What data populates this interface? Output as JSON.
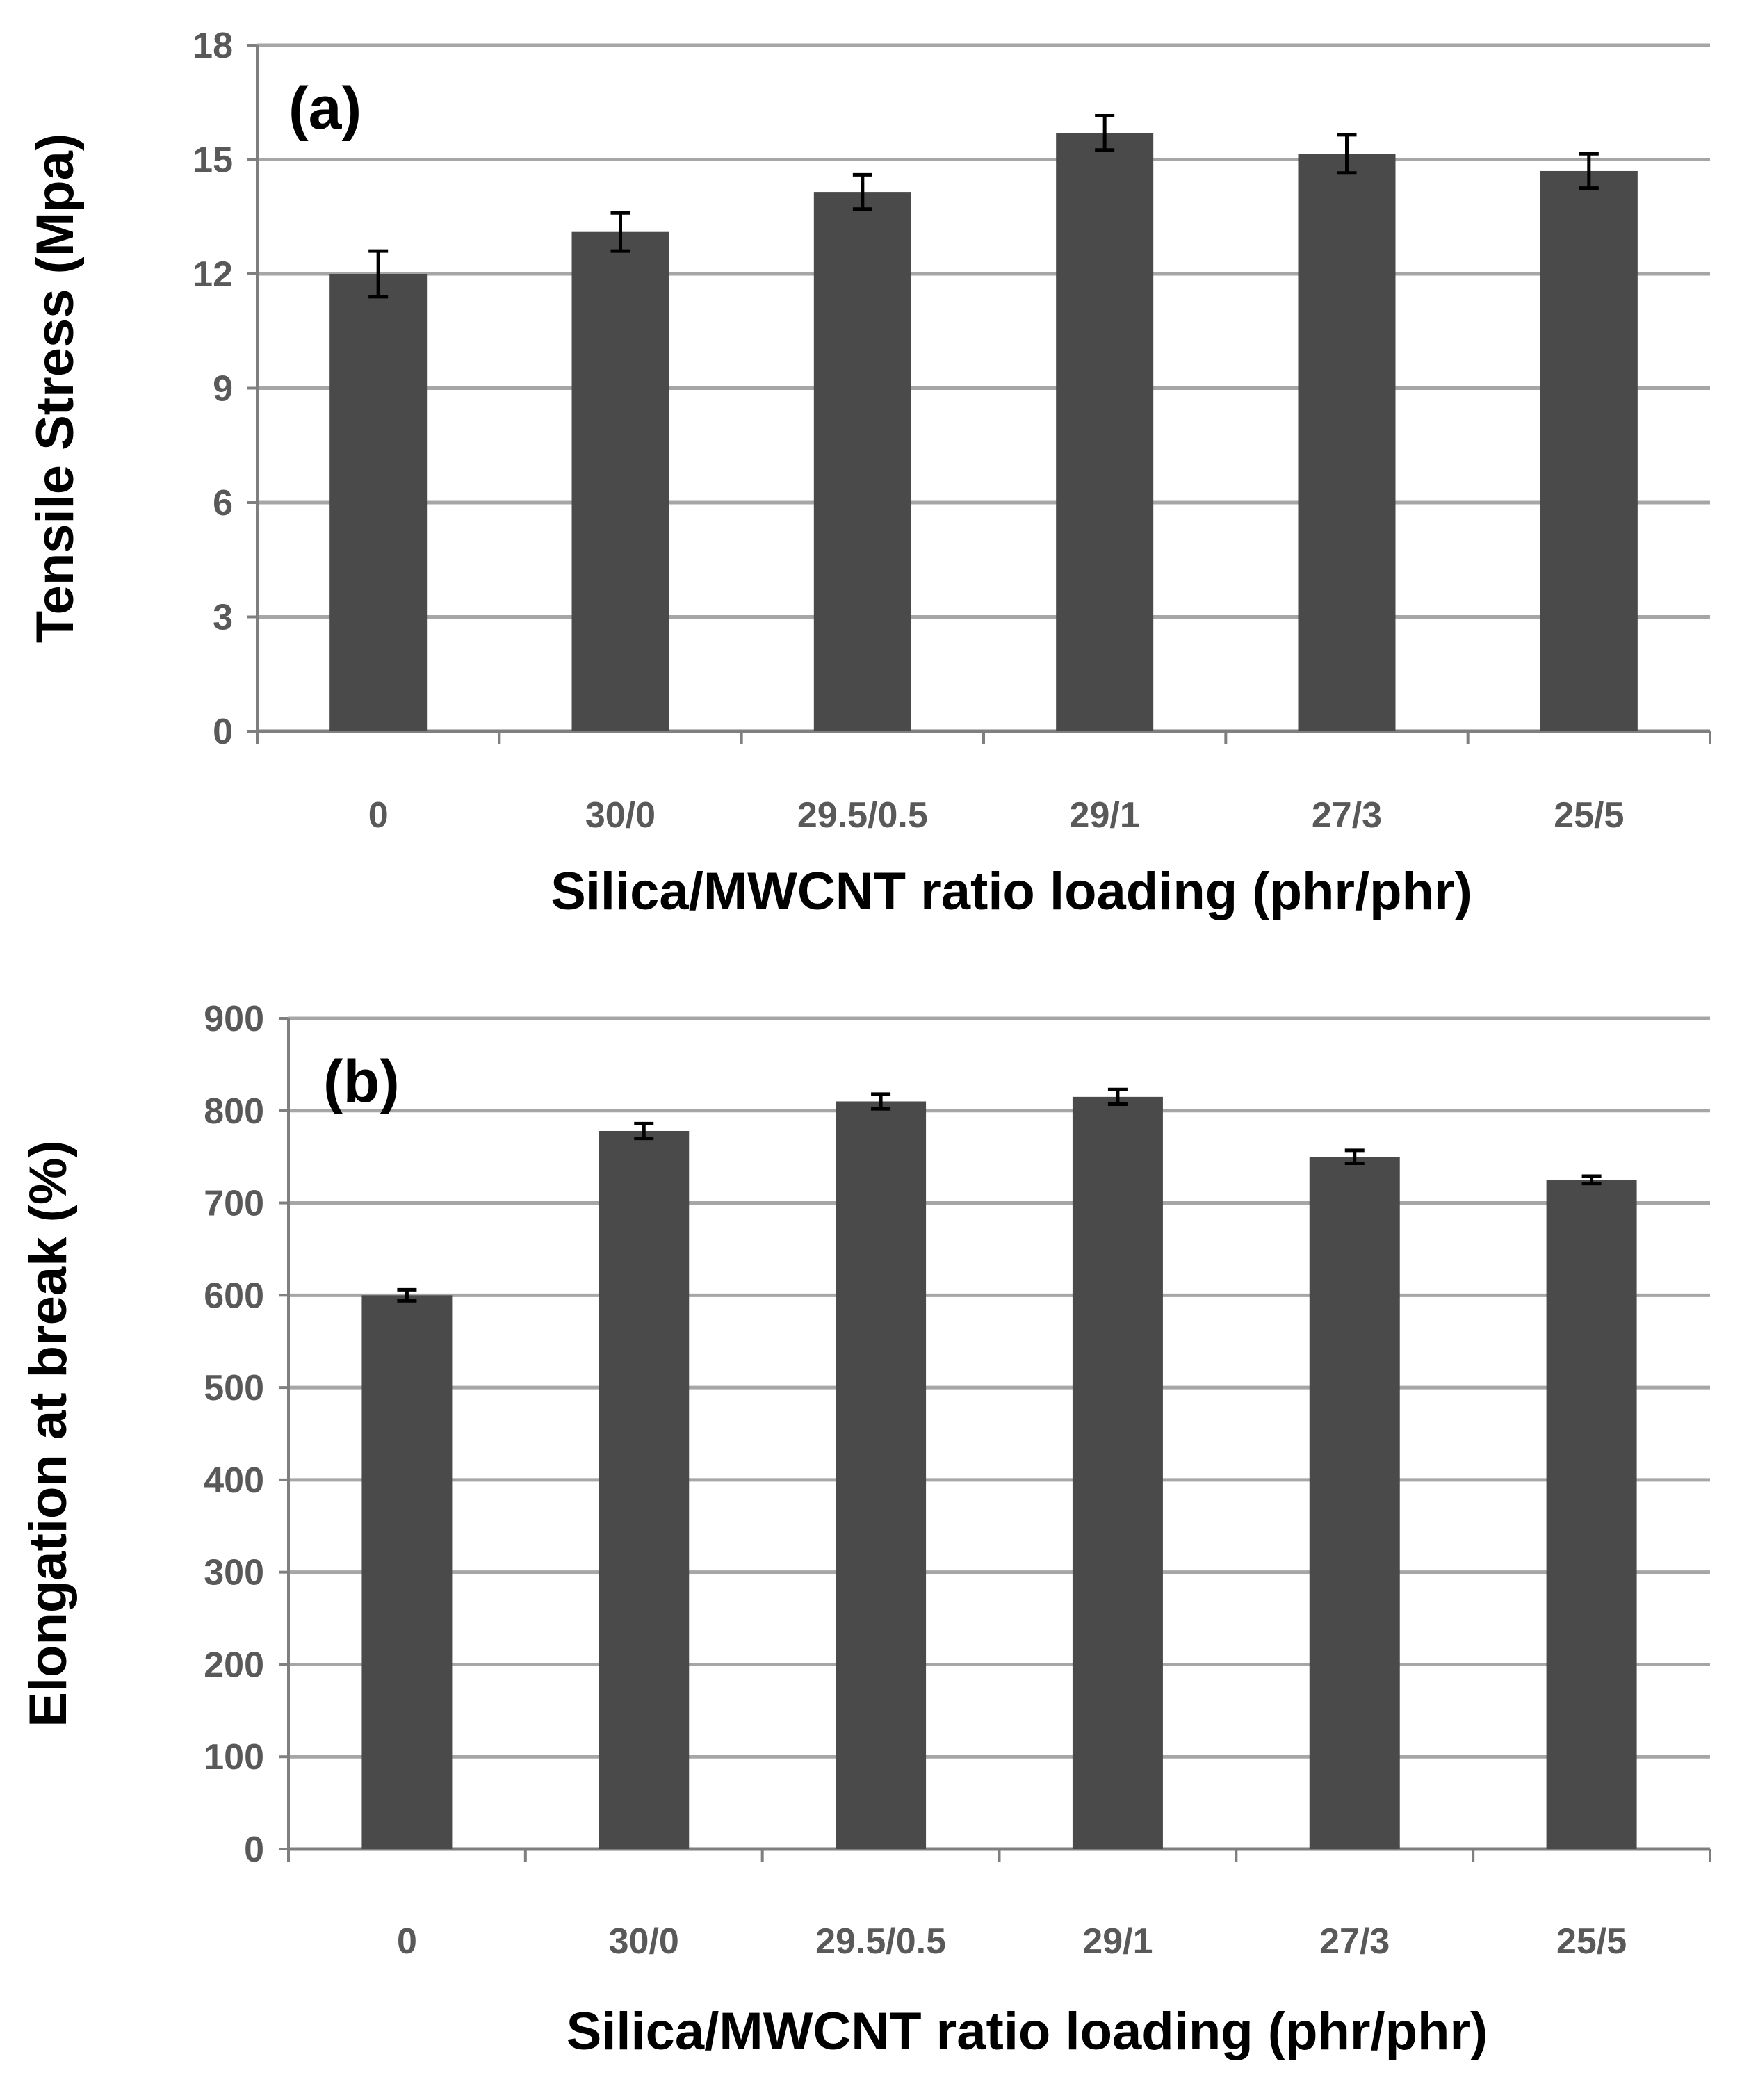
{
  "chart_data": [
    {
      "type": "bar",
      "panel_label": "(a)",
      "categories": [
        "0",
        "30/0",
        "29.5/0.5",
        "29/1",
        "27/3",
        "25/5"
      ],
      "values": [
        12.0,
        13.1,
        14.15,
        15.7,
        15.15,
        14.7
      ],
      "errors": [
        0.6,
        0.5,
        0.45,
        0.45,
        0.5,
        0.45
      ],
      "xlabel": "Silica/MWCNT ratio loading (phr/phr)",
      "ylabel": "Tensile Stress (Mpa)",
      "ylim": [
        0,
        18
      ],
      "yticks": [
        0,
        3,
        6,
        9,
        12,
        15,
        18
      ],
      "grid": true,
      "bar_color": "#4a4a4a"
    },
    {
      "type": "bar",
      "panel_label": "(b)",
      "categories": [
        "0",
        "30/0",
        "29.5/0.5",
        "29/1",
        "27/3",
        "25/5"
      ],
      "values": [
        600,
        778,
        810,
        815,
        750,
        725
      ],
      "errors": [
        6,
        8,
        8,
        8,
        7,
        4
      ],
      "xlabel": "Silica/MWCNT ratio loading (phr/phr)",
      "ylabel": "Elongation at break (%)",
      "ylim": [
        0,
        900
      ],
      "yticks": [
        0,
        100,
        200,
        300,
        400,
        500,
        600,
        700,
        800,
        900
      ],
      "grid": true,
      "bar_color": "#4a4a4a"
    }
  ]
}
